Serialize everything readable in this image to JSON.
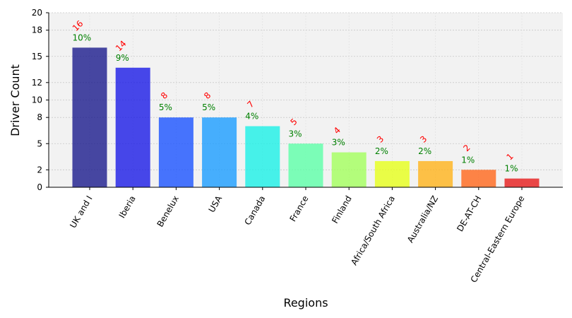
{
  "chart_data": {
    "type": "bar",
    "title": "",
    "xlabel": "Regions",
    "ylabel": "Driver Count",
    "ylim": [
      0,
      20
    ],
    "yticks": [
      0,
      2,
      5,
      8,
      10,
      12,
      15,
      18,
      20
    ],
    "ytick_labels": [
      "0",
      "2",
      "5",
      "8",
      "10",
      "12",
      "15",
      "18",
      "20"
    ],
    "grid": true,
    "categories": [
      "UK and I",
      "Iberia",
      "Benelux",
      "USA",
      "Canada",
      "France",
      "Finland",
      "Africa/South Africa",
      "Australia/NZ",
      "DE-AT-CH",
      "Central-Eastern Europe"
    ],
    "values": [
      16,
      13.7,
      8,
      8,
      7,
      5,
      4,
      3,
      3,
      2,
      1
    ],
    "count_labels": [
      "16",
      "14",
      "8",
      "8",
      "7",
      "5",
      "4",
      "3",
      "3",
      "2",
      "1"
    ],
    "percent_labels": [
      "10%",
      "9%",
      "5%",
      "5%",
      "4%",
      "3%",
      "3%",
      "2%",
      "2%",
      "1%",
      "1%"
    ],
    "colors": [
      "#1a1a8c",
      "#1a1ae6",
      "#1a53ff",
      "#1a9cff",
      "#1af0e6",
      "#5cffa8",
      "#a3ff5c",
      "#e6ff1a",
      "#ffb31a",
      "#ff661a",
      "#e61a1a"
    ],
    "count_label_color": "#ff0000",
    "percent_label_color": "#008000",
    "plot_background": "#f2f2f2"
  }
}
